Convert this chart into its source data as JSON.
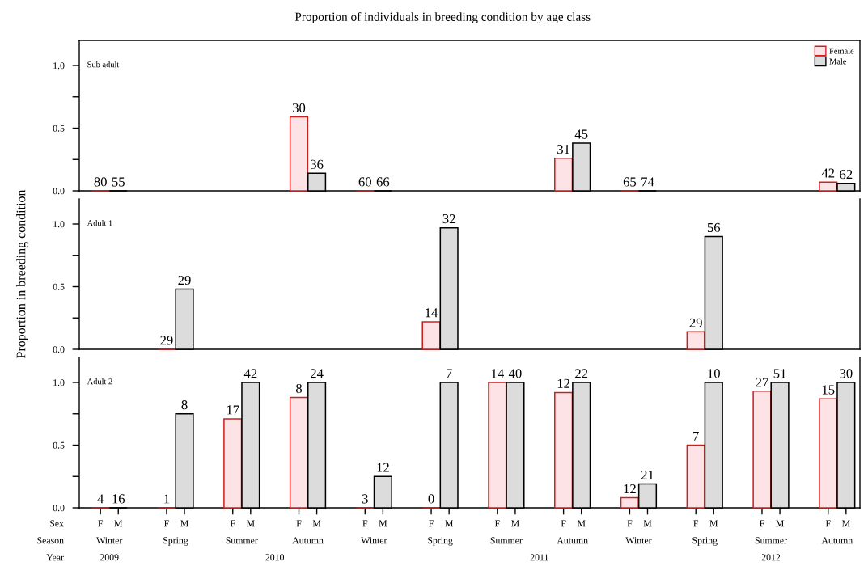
{
  "chart_data": [
    {
      "type": "bar",
      "title": "Proportion of individuals in breeding condition by age class",
      "legend": "top right",
      "tick_labels": "y",
      "categories": [
        null,
        null,
        null,
        null,
        null,
        null,
        null,
        null,
        null,
        null,
        null,
        null
      ],
      "ylim": [
        0,
        1.2
      ],
      "yticks": [
        {
          "value": 0,
          "label": "0.0"
        },
        {
          "value": 0.25,
          "label": null
        },
        {
          "value": 0.5,
          "label": "0.5"
        },
        {
          "value": 0.75,
          "label": null
        },
        {
          "value": 1.0,
          "label": "1.0"
        }
      ],
      "series": [
        {
          "name": "Female",
          "color": "#fde3e5",
          "colors": [
            "#cc2020",
            null,
            null,
            null,
            "#cc2020",
            null,
            null,
            null,
            "#cc2020",
            null,
            null,
            null
          ],
          "values": [
            0,
            null,
            null,
            0.59,
            0,
            null,
            null,
            0.26,
            0,
            null,
            null,
            0.07
          ]
        },
        {
          "name": "Male",
          "color": "#dcdcdc",
          "colors": [
            "#000000",
            null,
            null,
            null,
            "#000000",
            null,
            null,
            null,
            "#000000",
            null,
            null,
            null
          ],
          "values": [
            0,
            null,
            null,
            0.14,
            0,
            null,
            null,
            0.38,
            0,
            null,
            null,
            0.06
          ]
        }
      ],
      "annotations": [
        "Sub adult",
        "80",
        "55",
        "30",
        "36",
        "60",
        "66",
        "31",
        "45",
        "65",
        "74",
        "42",
        "62"
      ]
    },
    {
      "type": "bar",
      "ylabel": "Proportion in breeding condition",
      "tick_labels": "y",
      "categories": [
        null,
        null,
        null,
        null,
        null,
        null,
        null,
        null,
        null,
        null,
        null,
        null
      ],
      "ylim": [
        0,
        1.2
      ],
      "yticks": [
        {
          "value": 0,
          "label": "0.0"
        },
        {
          "value": 0.25,
          "label": null
        },
        {
          "value": 0.5,
          "label": "0.5"
        },
        {
          "value": 0.75,
          "label": null
        },
        {
          "value": 1.0,
          "label": "1.0"
        }
      ],
      "series": [
        {
          "color": "#fde3e5",
          "colors": [
            null,
            "#cc2020",
            null,
            null,
            null,
            null,
            null,
            null,
            null,
            null,
            null,
            null
          ],
          "values": [
            null,
            0,
            null,
            null,
            null,
            0.22,
            null,
            null,
            null,
            0.14,
            null,
            null
          ]
        },
        {
          "color": "#dcdcdc",
          "values": [
            null,
            0.48,
            null,
            null,
            null,
            0.97,
            null,
            null,
            null,
            0.9,
            null,
            null
          ]
        }
      ],
      "annotations": [
        "Adult 1",
        "29",
        "29",
        "14",
        "32",
        "29",
        "56"
      ]
    },
    {
      "type": "bar",
      "categories": [
        "Winter",
        "Spring",
        "Summer",
        "Autumn",
        "Winter",
        "Spring",
        "Summer",
        "Autumn",
        "Winter",
        "Spring",
        "Summer",
        "Autumn"
      ],
      "ylim": [
        0,
        1.2
      ],
      "yticks": [
        {
          "value": 0,
          "label": "0.0"
        },
        {
          "value": 0.25,
          "label": null
        },
        {
          "value": 0.5,
          "label": "0.5"
        },
        {
          "value": 0.75,
          "label": null
        },
        {
          "value": 1.0,
          "label": "1.0"
        }
      ],
      "series": [
        {
          "color": "#fde3e5",
          "colors": [
            "#cc2020",
            "#cc2020",
            null,
            null,
            "#cc2020",
            "#cc2020",
            null,
            null,
            null,
            null,
            null,
            null
          ],
          "values": [
            0,
            0,
            0.71,
            0.88,
            0,
            0,
            1.0,
            0.92,
            0.08,
            0.5,
            0.93,
            0.87
          ]
        },
        {
          "color": "#dcdcdc",
          "colors": [
            "#000000",
            null,
            null,
            null,
            null,
            null,
            null,
            null,
            null,
            null,
            null,
            null
          ],
          "values": [
            0,
            0.75,
            1.0,
            1.0,
            0.25,
            1.0,
            1.0,
            1.0,
            0.19,
            1.0,
            1.0,
            1.0
          ]
        }
      ],
      "annotations": [
        "Adult 2",
        "4",
        "16",
        "1",
        "8",
        "17",
        "42",
        "8",
        "24",
        "3",
        "12",
        "0",
        "7",
        "14",
        "40",
        "12",
        "22",
        "12",
        "21",
        "7",
        "10",
        "27",
        "51",
        "15",
        "30",
        "Sex",
        "Season",
        "Year",
        "F",
        "M",
        "F",
        "M",
        "F",
        "M",
        "F",
        "M",
        "F",
        "M",
        "F",
        "M",
        "F",
        "M",
        "F",
        "M",
        "F",
        "M",
        "F",
        "M",
        "F",
        "M",
        "F",
        "M",
        "2009",
        "2010",
        "2011",
        "2012"
      ]
    }
  ]
}
